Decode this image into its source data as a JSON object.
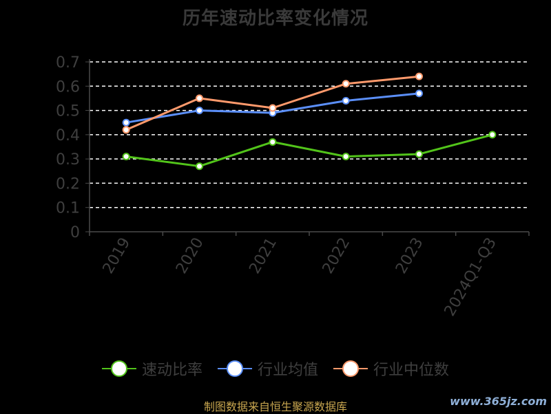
{
  "chart_data": {
    "type": "line",
    "title": "历年速动比率变化情况",
    "categories": [
      "2019",
      "2020",
      "2021",
      "2022",
      "2023",
      "2024Q1-Q3"
    ],
    "y_ticks": [
      "0",
      "0.1",
      "0.2",
      "0.3",
      "0.4",
      "0.5",
      "0.6",
      "0.7"
    ],
    "ylim": [
      0,
      0.7
    ],
    "grid": true,
    "legend_position": "bottom",
    "series": [
      {
        "name": "速动比率",
        "color": "#52c41a",
        "values": [
          0.31,
          0.27,
          0.37,
          0.31,
          0.32,
          0.4
        ]
      },
      {
        "name": "行业均值",
        "color": "#5b8ff9",
        "values": [
          0.45,
          0.5,
          0.49,
          0.54,
          0.57,
          null
        ]
      },
      {
        "name": "行业中位数",
        "color": "#ff9a6c",
        "values": [
          0.42,
          0.55,
          0.51,
          0.61,
          0.64,
          null
        ]
      }
    ]
  },
  "footer": {
    "source": "制图数据来自恒生聚源数据库",
    "watermark": "www.365jz.com"
  }
}
